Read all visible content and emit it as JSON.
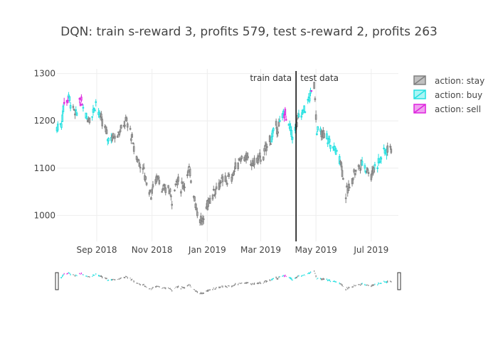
{
  "chart_data": {
    "type": "candlestick",
    "title": "DQN: train s-reward 3, profits 579, test s-reward 2, profits 263",
    "xlabel": "",
    "ylabel": "",
    "x_ticks": [
      "Sep 2018",
      "Nov 2018",
      "Jan 2019",
      "Mar 2019",
      "May 2019",
      "Jul 2019"
    ],
    "y_ticks": [
      1000,
      1100,
      1200,
      1300
    ],
    "ylim": [
      945,
      1310
    ],
    "xlim": [
      "2018-07-19",
      "2019-07-31"
    ],
    "grid": true,
    "legend_position": "top-right",
    "split_date": "2019-04-09",
    "annotations": [
      {
        "text": "train data",
        "side": "left"
      },
      {
        "text": "test data",
        "side": "right"
      }
    ],
    "series": [
      {
        "name": "action: stay",
        "color": "#808080",
        "fill": "#c0c0c0"
      },
      {
        "name": "action: buy",
        "color": "#22e0e0",
        "fill": "#aaf5f5"
      },
      {
        "name": "action: sell",
        "color": "#dd22dd",
        "fill": "#f0a0f0"
      }
    ],
    "price_path": [
      [
        "2018-07-19",
        1185,
        "buy"
      ],
      [
        "2018-07-24",
        1195,
        "buy"
      ],
      [
        "2018-07-27",
        1240,
        "sell"
      ],
      [
        "2018-08-01",
        1250,
        "buy"
      ],
      [
        "2018-08-06",
        1225,
        "stay"
      ],
      [
        "2018-08-09",
        1210,
        "buy"
      ],
      [
        "2018-08-13",
        1245,
        "sell"
      ],
      [
        "2018-08-17",
        1230,
        "buy"
      ],
      [
        "2018-08-22",
        1205,
        "stay"
      ],
      [
        "2018-08-27",
        1215,
        "buy"
      ],
      [
        "2018-08-31",
        1240,
        "buy"
      ],
      [
        "2018-09-05",
        1205,
        "stay"
      ],
      [
        "2018-09-10",
        1185,
        "stay"
      ],
      [
        "2018-09-13",
        1165,
        "buy"
      ],
      [
        "2018-09-18",
        1165,
        "stay"
      ],
      [
        "2018-09-24",
        1175,
        "stay"
      ],
      [
        "2018-09-28",
        1180,
        "stay"
      ],
      [
        "2018-10-03",
        1200,
        "stay"
      ],
      [
        "2018-10-08",
        1180,
        "stay"
      ],
      [
        "2018-10-12",
        1140,
        "stay"
      ],
      [
        "2018-10-17",
        1115,
        "stay"
      ],
      [
        "2018-10-22",
        1100,
        "stay"
      ],
      [
        "2018-10-26",
        1070,
        "stay"
      ],
      [
        "2018-10-31",
        1045,
        "stay"
      ],
      [
        "2018-11-05",
        1075,
        "stay"
      ],
      [
        "2018-11-08",
        1085,
        "stay"
      ],
      [
        "2018-11-13",
        1050,
        "stay"
      ],
      [
        "2018-11-19",
        1060,
        "stay"
      ],
      [
        "2018-11-23",
        1035,
        "stay"
      ],
      [
        "2018-11-28",
        1075,
        "stay"
      ],
      [
        "2018-12-03",
        1060,
        "stay"
      ],
      [
        "2018-12-07",
        1070,
        "stay"
      ],
      [
        "2018-12-12",
        1095,
        "stay"
      ],
      [
        "2018-12-17",
        1050,
        "stay"
      ],
      [
        "2018-12-21",
        1005,
        "stay"
      ],
      [
        "2018-12-27",
        985,
        "stay"
      ],
      [
        "2019-01-02",
        1030,
        "stay"
      ],
      [
        "2019-01-07",
        1045,
        "stay"
      ],
      [
        "2019-01-11",
        1060,
        "stay"
      ],
      [
        "2019-01-16",
        1070,
        "stay"
      ],
      [
        "2019-01-22",
        1075,
        "stay"
      ],
      [
        "2019-01-28",
        1080,
        "stay"
      ],
      [
        "2019-02-01",
        1100,
        "stay"
      ],
      [
        "2019-02-06",
        1120,
        "stay"
      ],
      [
        "2019-02-11",
        1125,
        "stay"
      ],
      [
        "2019-02-15",
        1115,
        "stay"
      ],
      [
        "2019-02-21",
        1110,
        "stay"
      ],
      [
        "2019-02-26",
        1120,
        "stay"
      ],
      [
        "2019-03-04",
        1125,
        "stay"
      ],
      [
        "2019-03-08",
        1150,
        "stay"
      ],
      [
        "2019-03-13",
        1165,
        "buy"
      ],
      [
        "2019-03-18",
        1185,
        "stay"
      ],
      [
        "2019-03-22",
        1190,
        "buy"
      ],
      [
        "2019-03-27",
        1220,
        "sell"
      ],
      [
        "2019-04-01",
        1190,
        "buy"
      ],
      [
        "2019-04-05",
        1170,
        "buy"
      ],
      [
        "2019-04-09",
        1185,
        "stay"
      ],
      [
        "2019-04-12",
        1210,
        "buy"
      ],
      [
        "2019-04-17",
        1220,
        "buy"
      ],
      [
        "2019-04-22",
        1240,
        "buy"
      ],
      [
        "2019-04-26",
        1260,
        "sell"
      ],
      [
        "2019-04-29",
        1280,
        "stay"
      ],
      [
        "2019-05-02",
        1180,
        "buy"
      ],
      [
        "2019-05-07",
        1170,
        "stay"
      ],
      [
        "2019-05-13",
        1165,
        "buy"
      ],
      [
        "2019-05-17",
        1150,
        "buy"
      ],
      [
        "2019-05-22",
        1140,
        "buy"
      ],
      [
        "2019-05-28",
        1120,
        "stay"
      ],
      [
        "2019-06-03",
        1045,
        "stay"
      ],
      [
        "2019-06-07",
        1060,
        "stay"
      ],
      [
        "2019-06-12",
        1090,
        "stay"
      ],
      [
        "2019-06-17",
        1100,
        "stay"
      ],
      [
        "2019-06-21",
        1110,
        "buy"
      ],
      [
        "2019-06-26",
        1100,
        "stay"
      ],
      [
        "2019-07-01",
        1085,
        "stay"
      ],
      [
        "2019-07-05",
        1105,
        "buy"
      ],
      [
        "2019-07-10",
        1115,
        "buy"
      ],
      [
        "2019-07-15",
        1135,
        "buy"
      ],
      [
        "2019-07-19",
        1140,
        "stay"
      ],
      [
        "2019-07-24",
        1145,
        "stay"
      ]
    ]
  }
}
